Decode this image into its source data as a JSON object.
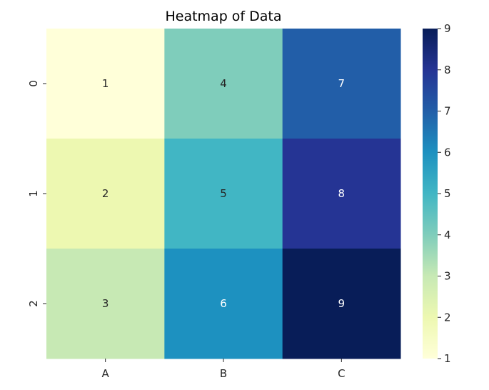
{
  "chart_data": {
    "type": "heatmap",
    "title": "Heatmap of Data",
    "xlabel": "",
    "ylabel": "",
    "x_categories": [
      "A",
      "B",
      "C"
    ],
    "y_categories": [
      "0",
      "1",
      "2"
    ],
    "values": [
      [
        1,
        4,
        7
      ],
      [
        2,
        5,
        8
      ],
      [
        3,
        6,
        9
      ]
    ],
    "annotations": true,
    "colormap": "YlGnBu",
    "colorbar": {
      "min": 1,
      "max": 9,
      "ticks": [
        1,
        2,
        3,
        4,
        5,
        6,
        7,
        8,
        9
      ],
      "placement": "right"
    },
    "colors": {
      "1": "#ffffd9",
      "2": "#edf8b1",
      "3": "#c7e9b4",
      "4": "#7fcdbb",
      "5": "#41b6c4",
      "6": "#1d91c0",
      "7": "#225ea8",
      "8": "#253494",
      "9": "#081d58"
    },
    "grid": false
  }
}
